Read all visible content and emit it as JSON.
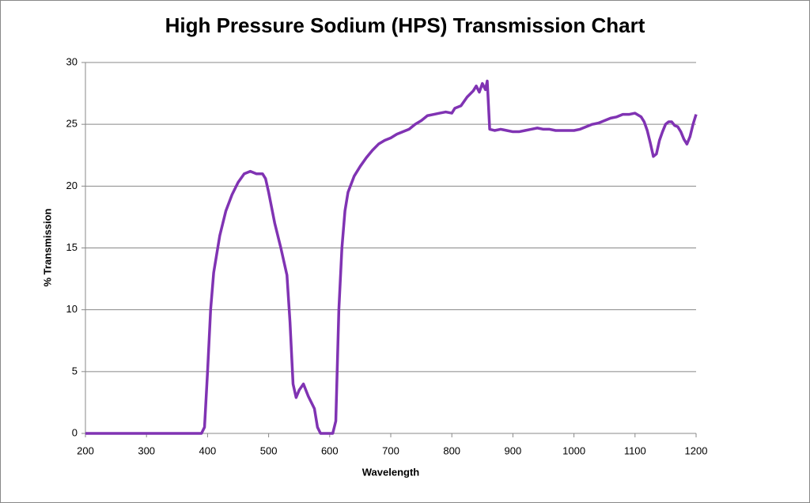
{
  "chart_data": {
    "type": "line",
    "title": "High Pressure Sodium (HPS) Transmission Chart",
    "x_label": "Wavelength",
    "y_label": "% Transmission",
    "xlim": [
      200,
      1200
    ],
    "xticks": [
      200,
      300,
      400,
      500,
      600,
      700,
      800,
      900,
      1000,
      1100,
      1200
    ],
    "ylim": [
      0,
      30
    ],
    "yticks": [
      0,
      5,
      10,
      15,
      20,
      25,
      30
    ],
    "grid": true,
    "series": [
      {
        "name": "HPS",
        "color": "#8033b3",
        "x": [
          200,
          390,
          395,
          400,
          405,
          410,
          420,
          430,
          440,
          450,
          460,
          470,
          480,
          490,
          495,
          500,
          510,
          520,
          530,
          535,
          540,
          545,
          550,
          557,
          565,
          575,
          580,
          585,
          605,
          610,
          615,
          620,
          625,
          630,
          640,
          650,
          660,
          670,
          680,
          690,
          700,
          710,
          720,
          730,
          740,
          750,
          760,
          770,
          780,
          790,
          800,
          805,
          815,
          825,
          835,
          840,
          845,
          850,
          855,
          858,
          862,
          870,
          880,
          890,
          900,
          910,
          920,
          930,
          940,
          950,
          960,
          970,
          980,
          990,
          1000,
          1010,
          1020,
          1030,
          1040,
          1050,
          1060,
          1070,
          1080,
          1090,
          1100,
          1110,
          1115,
          1120,
          1125,
          1130,
          1135,
          1140,
          1145,
          1150,
          1155,
          1160,
          1165,
          1170,
          1175,
          1180,
          1185,
          1190,
          1195,
          1200
        ],
        "values": [
          0,
          0,
          0.5,
          5,
          10,
          13,
          16,
          18,
          19.3,
          20.3,
          21,
          21.2,
          21,
          21,
          20.6,
          19.5,
          17,
          15,
          12.8,
          9,
          4,
          2.9,
          3.5,
          4,
          3,
          2,
          0.5,
          0,
          0,
          1,
          10,
          15,
          18,
          19.5,
          20.8,
          21.6,
          22.3,
          22.9,
          23.4,
          23.7,
          23.9,
          24.2,
          24.4,
          24.6,
          25,
          25.3,
          25.7,
          25.8,
          25.9,
          26,
          25.9,
          26.3,
          26.5,
          27.2,
          27.7,
          28.1,
          27.6,
          28.3,
          27.8,
          28.5,
          24.6,
          24.5,
          24.6,
          24.5,
          24.4,
          24.4,
          24.5,
          24.6,
          24.7,
          24.6,
          24.6,
          24.5,
          24.5,
          24.5,
          24.5,
          24.6,
          24.8,
          25,
          25.1,
          25.3,
          25.5,
          25.6,
          25.8,
          25.8,
          25.9,
          25.6,
          25.2,
          24.5,
          23.5,
          22.4,
          22.6,
          23.7,
          24.4,
          25,
          25.2,
          25.2,
          24.9,
          24.8,
          24.4,
          23.8,
          23.4,
          24,
          25,
          25.8
        ]
      }
    ]
  }
}
